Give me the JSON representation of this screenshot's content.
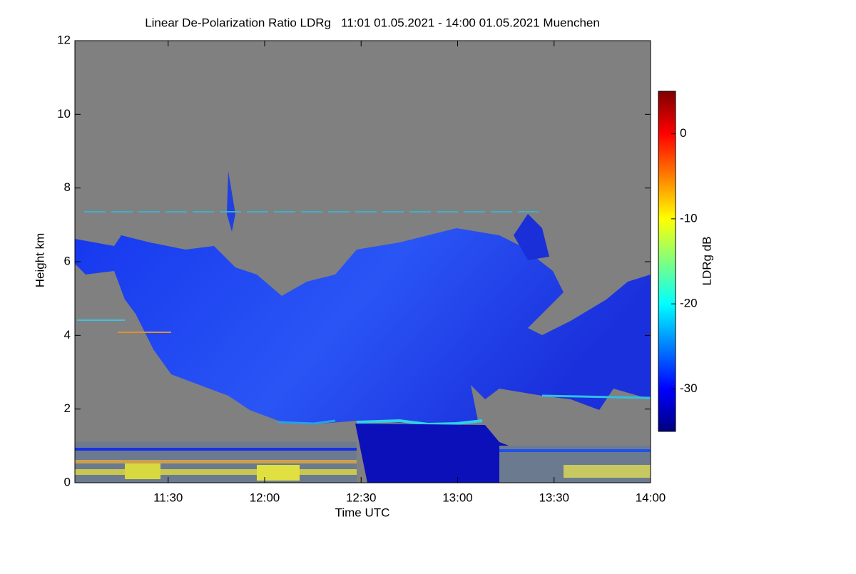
{
  "chart_data": {
    "type": "heatmap",
    "title": "Linear De-Polarization Ratio LDRg   11:01 01.05.2021 - 14:00 01.05.2021 Muenchen",
    "x_label": "Time UTC",
    "y_label": "Height km",
    "xlim": [
      11.0167,
      14.0
    ],
    "xticks": [
      {
        "value": 11.5,
        "label": "11:30"
      },
      {
        "value": 12.0,
        "label": "12:00"
      },
      {
        "value": 12.5,
        "label": "12:30"
      },
      {
        "value": 13.0,
        "label": "13:00"
      },
      {
        "value": 13.5,
        "label": "13:30"
      },
      {
        "value": 14.0,
        "label": "14:00"
      }
    ],
    "ylim": [
      0,
      12
    ],
    "yticks": [
      0,
      2,
      4,
      6,
      8,
      10,
      12
    ],
    "colorbar": {
      "label": "LDRg dB",
      "clim": [
        -35,
        5
      ],
      "ticks": [
        0,
        -10,
        -20,
        -30
      ],
      "colormap": [
        "#00007f",
        "#0000ff",
        "#007fff",
        "#00ffff",
        "#7fff7f",
        "#ffff00",
        "#ff7f00",
        "#ff0000",
        "#7f0000"
      ]
    }
  }
}
